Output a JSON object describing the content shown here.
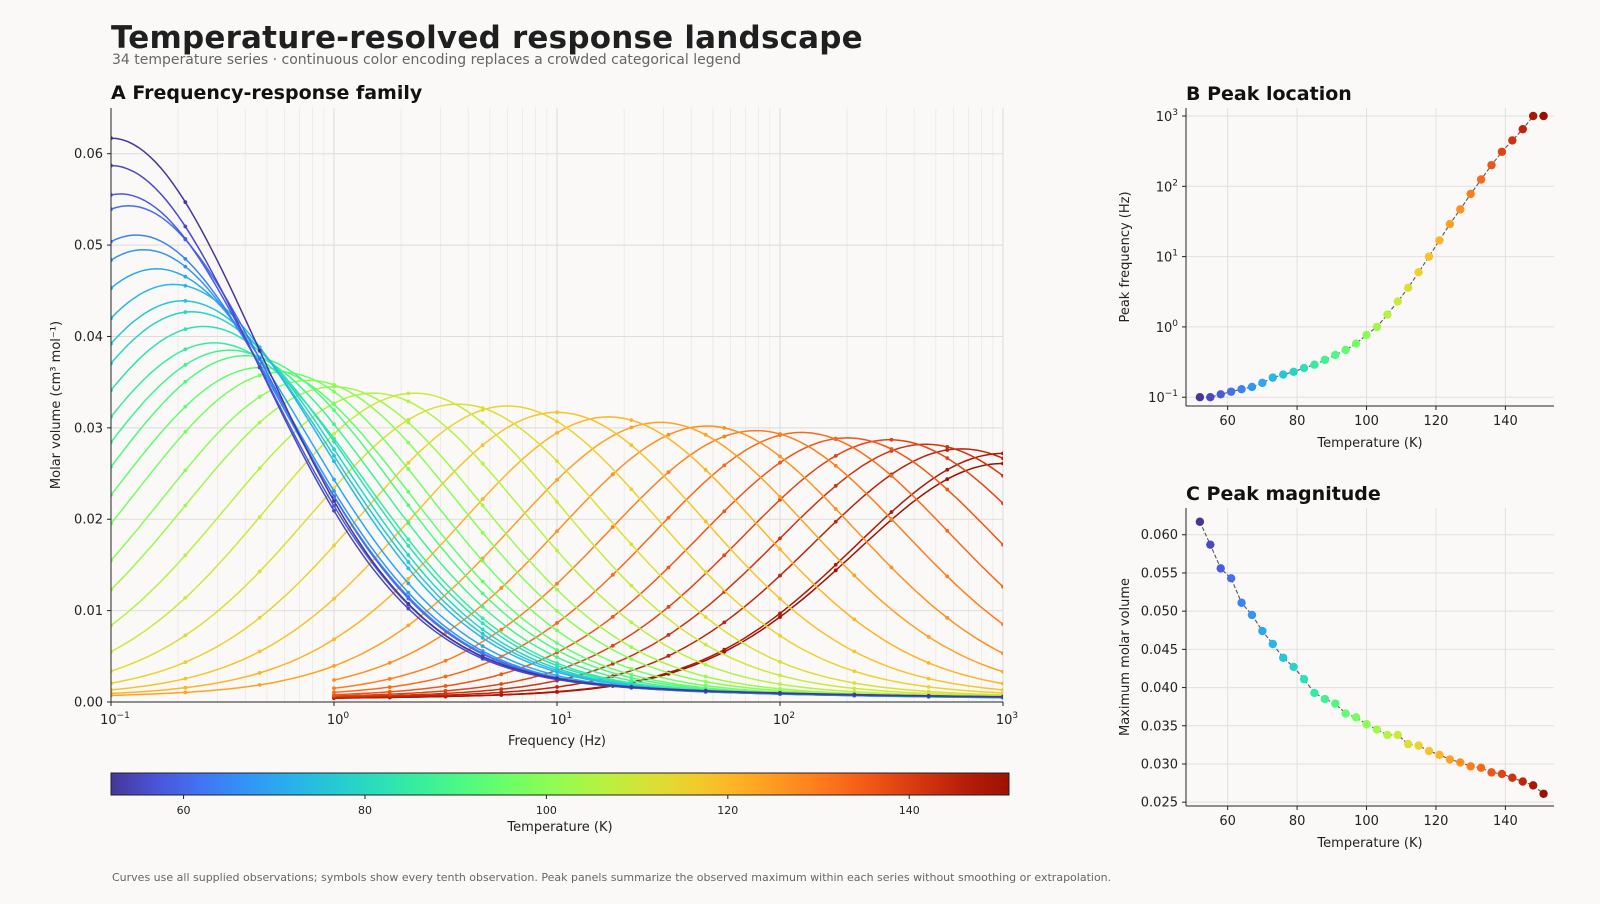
{
  "figure": {
    "title": "Temperature-resolved response landscape",
    "subtitle": "34 temperature series · continuous color encoding replaces a crowded categorical legend",
    "footnote": "Curves use all supplied observations; symbols show every tenth observation. Peak panels summarize the observed maximum within each series without smoothing or extrapolation."
  },
  "chart_data": [
    {
      "id": "A",
      "type": "line",
      "title": "A  Frequency-response family",
      "xlabel": "Frequency (Hz)",
      "ylabel": "Molar volume (cm³ mol⁻¹)",
      "xscale": "log",
      "xlim": [
        0.1,
        1000
      ],
      "ylim": [
        0,
        0.065
      ],
      "xticks": [
        0.1,
        1,
        10,
        100,
        1000
      ],
      "xtick_labels": [
        "10",
        "10",
        "10",
        "10",
        "10"
      ],
      "xtick_exponents": [
        "−1",
        "0",
        "1",
        "2",
        "3"
      ],
      "yticks": [
        0,
        0.01,
        0.02,
        0.03,
        0.04,
        0.05,
        0.06
      ],
      "ytick_labels": [
        "0.00",
        "0.01",
        "0.02",
        "0.03",
        "0.04",
        "0.05",
        "0.06"
      ],
      "grid": true,
      "series_encoding": "one curve per temperature series, colored by temperature (turbo colormap); marker symbols every tenth observation",
      "temperatures_K": [
        52,
        55,
        58,
        61,
        64,
        67,
        70,
        73,
        76,
        79,
        82,
        85,
        88,
        91,
        94,
        97,
        100,
        103,
        106,
        109,
        112,
        115,
        118,
        121,
        124,
        127,
        130,
        133,
        136,
        139,
        142,
        145,
        148,
        151
      ],
      "peak_frequency_Hz": [
        0.1,
        0.1,
        0.11,
        0.12,
        0.13,
        0.14,
        0.16,
        0.19,
        0.21,
        0.23,
        0.26,
        0.29,
        0.34,
        0.4,
        0.47,
        0.58,
        0.77,
        1.0,
        1.5,
        2.3,
        3.6,
        6.0,
        10,
        17,
        29,
        47,
        78,
        125,
        200,
        310,
        450,
        650,
        1000,
        1000
      ],
      "peak_molar_volume": [
        0.0617,
        0.0587,
        0.0556,
        0.0543,
        0.0511,
        0.0495,
        0.0474,
        0.0457,
        0.0439,
        0.0427,
        0.0411,
        0.0393,
        0.0385,
        0.0379,
        0.0366,
        0.0361,
        0.0352,
        0.0345,
        0.0338,
        0.0338,
        0.0326,
        0.0324,
        0.0317,
        0.0312,
        0.0306,
        0.0302,
        0.0297,
        0.0295,
        0.0289,
        0.0287,
        0.0282,
        0.0277,
        0.0272,
        0.0261
      ],
      "frequency_start_Hz": [
        0.1,
        0.1,
        0.1,
        0.1,
        0.1,
        0.1,
        0.1,
        0.1,
        0.1,
        0.1,
        0.1,
        0.1,
        0.1,
        0.1,
        0.1,
        0.1,
        0.1,
        0.1,
        0.1,
        0.1,
        0.1,
        0.1,
        0.1,
        0.1,
        0.1,
        1,
        1,
        1,
        1,
        1,
        1,
        1,
        1,
        1
      ]
    },
    {
      "type": "colorbar",
      "label": "Temperature (K)",
      "range": [
        52,
        151
      ],
      "ticks": [
        60,
        80,
        100,
        120,
        140
      ],
      "tick_labels": [
        "60",
        "80",
        "100",
        "120",
        "140"
      ],
      "colormap": "turbo"
    },
    {
      "id": "B",
      "type": "scatter",
      "title": "B  Peak location",
      "xlabel": "Temperature (K)",
      "ylabel": "Peak frequency (Hz)",
      "yscale": "log",
      "xlim": [
        48,
        154
      ],
      "ylim": [
        0.075,
        1300
      ],
      "xticks": [
        60,
        80,
        100,
        120,
        140
      ],
      "xtick_labels": [
        "60",
        "80",
        "100",
        "120",
        "140"
      ],
      "yticks": [
        0.1,
        1,
        10,
        100,
        1000
      ],
      "ytick_labels": [
        "10",
        "10",
        "10",
        "10",
        "10"
      ],
      "ytick_exponents": [
        "−1",
        "0",
        "1",
        "2",
        "3"
      ],
      "grid": true,
      "connected": true,
      "x": [
        52,
        55,
        58,
        61,
        64,
        67,
        70,
        73,
        76,
        79,
        82,
        85,
        88,
        91,
        94,
        97,
        100,
        103,
        106,
        109,
        112,
        115,
        118,
        121,
        124,
        127,
        130,
        133,
        136,
        139,
        142,
        145,
        148,
        151
      ],
      "y": [
        0.1,
        0.1,
        0.11,
        0.12,
        0.13,
        0.14,
        0.16,
        0.19,
        0.21,
        0.23,
        0.26,
        0.29,
        0.34,
        0.4,
        0.47,
        0.58,
        0.77,
        1.0,
        1.5,
        2.3,
        3.6,
        6.0,
        10,
        17,
        29,
        47,
        78,
        125,
        200,
        310,
        450,
        650,
        1000,
        1000
      ]
    },
    {
      "id": "C",
      "type": "scatter",
      "title": "C  Peak magnitude",
      "xlabel": "Temperature (K)",
      "ylabel": "Maximum molar volume",
      "xlim": [
        48,
        154
      ],
      "ylim": [
        0.0245,
        0.0635
      ],
      "xticks": [
        60,
        80,
        100,
        120,
        140
      ],
      "xtick_labels": [
        "60",
        "80",
        "100",
        "120",
        "140"
      ],
      "yticks": [
        0.025,
        0.03,
        0.035,
        0.04,
        0.045,
        0.05,
        0.055,
        0.06
      ],
      "ytick_labels": [
        "0.025",
        "0.030",
        "0.035",
        "0.040",
        "0.045",
        "0.050",
        "0.055",
        "0.060"
      ],
      "grid": true,
      "connected": true,
      "x": [
        52,
        55,
        58,
        61,
        64,
        67,
        70,
        73,
        76,
        79,
        82,
        85,
        88,
        91,
        94,
        97,
        100,
        103,
        106,
        109,
        112,
        115,
        118,
        121,
        124,
        127,
        130,
        133,
        136,
        139,
        142,
        145,
        148,
        151
      ],
      "y": [
        0.0617,
        0.0587,
        0.0556,
        0.0543,
        0.0511,
        0.0495,
        0.0474,
        0.0457,
        0.0439,
        0.0427,
        0.0411,
        0.0393,
        0.0385,
        0.0379,
        0.0366,
        0.0361,
        0.0352,
        0.0345,
        0.0338,
        0.0338,
        0.0326,
        0.0324,
        0.0317,
        0.0312,
        0.0306,
        0.0302,
        0.0297,
        0.0295,
        0.0289,
        0.0287,
        0.0282,
        0.0277,
        0.0272,
        0.0261
      ]
    }
  ]
}
